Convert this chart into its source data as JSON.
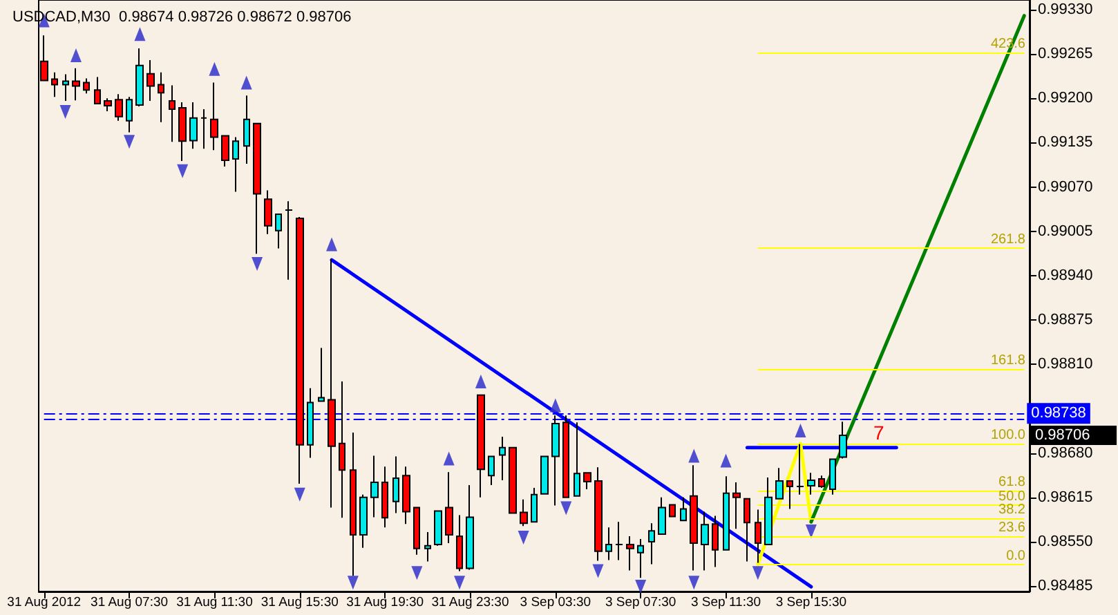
{
  "chart_data": {
    "type": "candlestick",
    "title": "USDCAD,M30  0.98674 0.98726 0.98672 0.98706",
    "categories": [
      "31 Aug 2012",
      null,
      null,
      null,
      null,
      null,
      null,
      null,
      "31 Aug 07:30",
      null,
      null,
      null,
      null,
      null,
      null,
      null,
      "31 Aug 11:30",
      null,
      null,
      null,
      null,
      null,
      null,
      null,
      "31 Aug 15:30",
      null,
      null,
      null,
      null,
      null,
      null,
      null,
      "31 Aug 19:30",
      null,
      null,
      null,
      null,
      null,
      null,
      null,
      "31 Aug 23:30",
      null,
      null,
      null,
      null,
      null,
      null,
      null,
      "3 Sep 03:30",
      null,
      null,
      null,
      null,
      null,
      null,
      null,
      "3 Sep 07:30",
      null,
      null,
      null,
      null,
      null,
      null,
      null,
      "3 Sep 11:30",
      null,
      null,
      null,
      null,
      null,
      null,
      null,
      "3 Sep 15:30",
      null,
      null,
      null,
      null,
      null,
      null,
      null,
      null,
      null,
      null,
      null,
      null,
      null,
      null,
      null,
      null,
      null,
      null,
      null,
      null
    ],
    "ohlc": [
      [
        0.99254,
        0.99292,
        0.99226,
        0.99226
      ],
      [
        0.99228,
        0.99238,
        0.99202,
        0.9922
      ],
      [
        0.9922,
        0.99235,
        0.99196,
        0.99225
      ],
      [
        0.99225,
        0.99244,
        0.99197,
        0.99218
      ],
      [
        0.99223,
        0.99229,
        0.99207,
        0.99212
      ],
      [
        0.99212,
        0.99231,
        0.99192,
        0.99192
      ],
      [
        0.99196,
        0.992,
        0.99181,
        0.99189
      ],
      [
        0.99198,
        0.99206,
        0.99167,
        0.99173
      ],
      [
        0.99167,
        0.99202,
        0.9915,
        0.99198
      ],
      [
        0.9919,
        0.99273,
        0.99188,
        0.99248
      ],
      [
        0.99236,
        0.99256,
        0.99196,
        0.99218
      ],
      [
        0.9922,
        0.99238,
        0.99165,
        0.99208
      ],
      [
        0.99196,
        0.99219,
        0.99136,
        0.99184
      ],
      [
        0.99186,
        0.99194,
        0.99108,
        0.99137
      ],
      [
        0.99138,
        0.99194,
        0.99126,
        0.99171
      ],
      [
        0.99171,
        0.99184,
        0.99126,
        0.99171
      ],
      [
        0.99169,
        0.99223,
        0.99124,
        0.99143
      ],
      [
        0.99145,
        0.99146,
        0.991,
        0.99109
      ],
      [
        0.99111,
        0.99143,
        0.99063,
        0.99137
      ],
      [
        0.9913,
        0.99204,
        0.99104,
        0.99169
      ],
      [
        0.99163,
        0.99163,
        0.98972,
        0.9906
      ],
      [
        0.99052,
        0.99065,
        0.99001,
        0.99013
      ],
      [
        0.99006,
        0.9903,
        0.9898,
        0.9903
      ],
      [
        0.99036,
        0.99049,
        0.98934,
        0.99036
      ],
      [
        0.99024,
        0.99026,
        0.98635,
        0.98692
      ],
      [
        0.98692,
        0.98775,
        0.98673,
        0.98754
      ],
      [
        0.98756,
        0.98834,
        0.98756,
        0.98761
      ],
      [
        0.98758,
        0.98964,
        0.986,
        0.9869
      ],
      [
        0.98694,
        0.98785,
        0.98585,
        0.98655
      ],
      [
        0.98655,
        0.9871,
        0.985,
        0.9856
      ],
      [
        0.9856,
        0.98619,
        0.98541,
        0.98615
      ],
      [
        0.98615,
        0.98676,
        0.98586,
        0.98637
      ],
      [
        0.98637,
        0.9866,
        0.98571,
        0.98585
      ],
      [
        0.98609,
        0.98675,
        0.98592,
        0.98643
      ],
      [
        0.98647,
        0.9866,
        0.98576,
        0.98594
      ],
      [
        0.986,
        0.986,
        0.98531,
        0.9854
      ],
      [
        0.9854,
        0.98564,
        0.98521,
        0.98544
      ],
      [
        0.98546,
        0.98596,
        0.98544,
        0.98595
      ],
      [
        0.986,
        0.98652,
        0.98548,
        0.9856
      ],
      [
        0.98558,
        0.98589,
        0.98507,
        0.98511
      ],
      [
        0.98511,
        0.98633,
        0.98509,
        0.98586
      ],
      [
        0.98765,
        0.98765,
        0.98615,
        0.98656
      ],
      [
        0.98647,
        0.98675,
        0.98633,
        0.98675
      ],
      [
        0.98677,
        0.98704,
        0.9864,
        0.98688
      ],
      [
        0.98688,
        0.98688,
        0.98592,
        0.98592
      ],
      [
        0.98593,
        0.98612,
        0.98573,
        0.98577
      ],
      [
        0.98579,
        0.98629,
        0.98579,
        0.98619
      ],
      [
        0.9862,
        0.98676,
        0.98619,
        0.98675
      ],
      [
        0.98675,
        0.98735,
        0.98603,
        0.98723
      ],
      [
        0.98725,
        0.98735,
        0.98615,
        0.98615
      ],
      [
        0.98617,
        0.98725,
        0.98617,
        0.9865
      ],
      [
        0.98651,
        0.98651,
        0.98627,
        0.98638
      ],
      [
        0.98639,
        0.98659,
        0.98522,
        0.98536
      ],
      [
        0.98536,
        0.98571,
        0.98523,
        0.98546
      ],
      [
        0.98546,
        0.98579,
        0.98523,
        0.98546
      ],
      [
        0.98546,
        0.98558,
        0.98508,
        0.9854
      ],
      [
        0.98534,
        0.98554,
        0.98497,
        0.98544
      ],
      [
        0.9855,
        0.98577,
        0.98517,
        0.98566
      ],
      [
        0.98561,
        0.98615,
        0.98561,
        0.986
      ],
      [
        0.98604,
        0.98604,
        0.98587,
        0.98587
      ],
      [
        0.98581,
        0.98615,
        0.98581,
        0.98598
      ],
      [
        0.98617,
        0.98662,
        0.98508,
        0.98548
      ],
      [
        0.98546,
        0.98594,
        0.98508,
        0.98575
      ],
      [
        0.98576,
        0.98588,
        0.98513,
        0.98538
      ],
      [
        0.98538,
        0.98646,
        0.98538,
        0.98621
      ],
      [
        0.98621,
        0.98637,
        0.98569,
        0.98615
      ],
      [
        0.98613,
        0.98613,
        0.98521,
        0.98578
      ],
      [
        0.98578,
        0.98597,
        0.98519,
        0.98548
      ],
      [
        0.98546,
        0.98644,
        0.98546,
        0.98615
      ],
      [
        0.98613,
        0.98658,
        0.98613,
        0.98639
      ],
      [
        0.98639,
        0.98639,
        0.98598,
        0.98631
      ],
      [
        0.98631,
        0.98693,
        0.98619,
        0.98631
      ],
      [
        0.98632,
        0.98651,
        0.98619,
        0.9864
      ],
      [
        0.98642,
        0.98647,
        0.98629,
        0.98631
      ],
      [
        0.98627,
        0.98671,
        0.98619,
        0.98671
      ],
      [
        0.98674,
        0.98726,
        0.98672,
        0.98706
      ],
      null,
      null,
      null,
      null,
      null,
      null,
      null,
      null,
      null,
      null,
      null,
      null,
      null,
      null,
      null,
      null,
      null
    ],
    "ylim": [
      0.98477,
      0.99344
    ],
    "yticks": [
      {
        "value": 0.9933,
        "label": "0.99330"
      },
      0.99265,
      {
        "value": 0.992,
        "label": "0.99200"
      },
      0.99135,
      {
        "value": 0.9907,
        "label": "0.99070"
      },
      0.99005,
      {
        "value": 0.9894,
        "label": "0.98940"
      },
      0.98875,
      {
        "value": 0.9881,
        "label": "0.98810"
      },
      {
        "value": 0.9868,
        "label": "0.98680"
      },
      0.98615,
      {
        "value": 0.9855,
        "label": "0.98550"
      },
      0.98485
    ],
    "series": [
      {
        "type": "line",
        "color": "#0000ff",
        "values": [
          null,
          null,
          null,
          null,
          null,
          null,
          null,
          null,
          null,
          null,
          null,
          null,
          null,
          null,
          null,
          null,
          null,
          null,
          null,
          null,
          null,
          null,
          null,
          null,
          null,
          null,
          null,
          0.98963,
          null,
          null,
          null,
          null,
          null,
          null,
          null,
          null,
          null,
          null,
          null,
          null,
          null,
          null,
          null,
          null,
          null,
          null,
          null,
          null,
          null,
          null,
          null,
          null,
          null,
          null,
          null,
          null,
          null,
          null,
          null,
          null,
          null,
          null,
          null,
          null,
          null,
          null,
          null,
          null,
          null,
          null,
          null,
          null,
          0.98484,
          null,
          null,
          null,
          null,
          null,
          null,
          null,
          null,
          null,
          null,
          null,
          null,
          null,
          null,
          null,
          null,
          null,
          null,
          null,
          null
        ]
      },
      {
        "type": "line",
        "color": "#0000ff",
        "values": [
          null,
          null,
          null,
          null,
          null,
          null,
          null,
          null,
          null,
          null,
          null,
          null,
          null,
          null,
          null,
          null,
          null,
          null,
          null,
          null,
          null,
          null,
          null,
          null,
          null,
          null,
          null,
          null,
          null,
          null,
          null,
          null,
          null,
          null,
          null,
          null,
          null,
          null,
          null,
          null,
          null,
          null,
          null,
          null,
          null,
          null,
          null,
          null,
          null,
          null,
          null,
          null,
          null,
          null,
          null,
          null,
          null,
          null,
          null,
          null,
          null,
          null,
          null,
          null,
          null,
          null,
          0.98688,
          null,
          null,
          null,
          null,
          null,
          null,
          null,
          null,
          null,
          null,
          null,
          null,
          null,
          0.98688,
          null,
          null,
          null,
          null,
          null,
          null,
          null,
          null,
          null,
          null,
          null,
          null
        ]
      },
      {
        "type": "line",
        "color": "#ffff00",
        "values": [
          null,
          null,
          null,
          null,
          null,
          null,
          null,
          null,
          null,
          null,
          null,
          null,
          null,
          null,
          null,
          null,
          null,
          null,
          null,
          null,
          null,
          null,
          null,
          null,
          null,
          null,
          null,
          null,
          null,
          null,
          null,
          null,
          null,
          null,
          null,
          null,
          null,
          null,
          null,
          null,
          null,
          null,
          null,
          null,
          null,
          null,
          null,
          null,
          null,
          null,
          null,
          null,
          null,
          null,
          null,
          null,
          null,
          null,
          null,
          null,
          null,
          null,
          null,
          null,
          null,
          null,
          null,
          0.98517,
          null,
          null,
          null,
          0.98694,
          0.98579,
          null,
          null,
          null,
          null,
          null,
          null,
          null,
          null,
          null,
          null,
          null,
          null,
          null,
          null,
          null,
          null,
          null,
          null,
          null,
          null
        ]
      },
      {
        "type": "line",
        "color": "#008000",
        "values": [
          null,
          null,
          null,
          null,
          null,
          null,
          null,
          null,
          null,
          null,
          null,
          null,
          null,
          null,
          null,
          null,
          null,
          null,
          null,
          null,
          null,
          null,
          null,
          null,
          null,
          null,
          null,
          null,
          null,
          null,
          null,
          null,
          null,
          null,
          null,
          null,
          null,
          null,
          null,
          null,
          null,
          null,
          null,
          null,
          null,
          null,
          null,
          null,
          null,
          null,
          null,
          null,
          null,
          null,
          null,
          null,
          null,
          null,
          null,
          null,
          null,
          null,
          null,
          null,
          null,
          null,
          null,
          null,
          null,
          null,
          null,
          null,
          0.98579,
          null,
          null,
          null,
          null,
          null,
          null,
          null,
          null,
          null,
          null,
          null,
          null,
          null,
          null,
          null,
          null,
          null,
          null,
          null,
          0.99321
        ]
      },
      {
        "type": "scatter",
        "color": "#3333cc",
        "marker": "triangle",
        "values": [
          0.99314,
          null,
          null,
          0.99263,
          null,
          null,
          null,
          null,
          null,
          0.99294,
          null,
          null,
          null,
          null,
          null,
          null,
          0.99243,
          null,
          null,
          0.99223,
          null,
          null,
          null,
          null,
          null,
          null,
          null,
          0.98986,
          null,
          null,
          null,
          null,
          null,
          null,
          null,
          null,
          null,
          null,
          0.98672,
          null,
          null,
          0.98785,
          null,
          null,
          null,
          null,
          null,
          null,
          0.9875,
          null,
          null,
          null,
          null,
          null,
          null,
          null,
          null,
          null,
          null,
          null,
          null,
          0.98676,
          null,
          null,
          0.98669,
          null,
          null,
          null,
          null,
          null,
          null,
          0.98713,
          null,
          null,
          null,
          null,
          null,
          null,
          null,
          null,
          null,
          null,
          null,
          null,
          null,
          null,
          null,
          null,
          null,
          null,
          null,
          null,
          null
        ]
      },
      {
        "type": "scatter",
        "color": "#3333cc",
        "marker": "triangle",
        "values": [
          null,
          null,
          0.9918,
          null,
          null,
          null,
          null,
          null,
          0.99136,
          null,
          null,
          null,
          null,
          0.99093,
          null,
          null,
          null,
          null,
          null,
          null,
          0.98957,
          null,
          null,
          null,
          0.98619,
          null,
          null,
          null,
          null,
          0.9849,
          null,
          null,
          null,
          null,
          null,
          0.98504,
          null,
          null,
          null,
          0.9849,
          null,
          null,
          null,
          null,
          null,
          0.98556,
          null,
          null,
          null,
          0.98599,
          null,
          null,
          0.98507,
          null,
          null,
          null,
          0.98484,
          null,
          null,
          null,
          null,
          0.9849,
          null,
          null,
          null,
          null,
          null,
          0.98504,
          null,
          null,
          null,
          null,
          0.98565,
          null,
          null,
          null,
          null,
          null,
          null,
          null,
          null,
          null,
          null,
          null,
          null,
          null,
          null,
          null,
          null,
          null,
          null,
          null,
          null
        ]
      }
    ],
    "ref_lines": [
      {
        "axis": "y",
        "value": 0.99267,
        "color": "#ffff00",
        "line_style": "solid"
      },
      {
        "axis": "y",
        "value": 0.9898,
        "color": "#ffff00",
        "line_style": "solid"
      },
      {
        "axis": "y",
        "value": 0.98803,
        "color": "#ffff00",
        "line_style": "solid"
      },
      {
        "axis": "y",
        "value": 0.98694,
        "color": "#ffff00",
        "line_style": "solid"
      },
      {
        "axis": "y",
        "value": 0.98625,
        "color": "#ffff00",
        "line_style": "solid"
      },
      {
        "axis": "y",
        "value": 0.98604,
        "color": "#ffff00",
        "line_style": "solid"
      },
      {
        "axis": "y",
        "value": 0.98584,
        "color": "#ffff00",
        "line_style": "solid"
      },
      {
        "axis": "y",
        "value": 0.98558,
        "color": "#ffff00",
        "line_style": "solid"
      },
      {
        "axis": "y",
        "value": 0.98517,
        "color": "#ffff00",
        "line_style": "solid"
      },
      {
        "axis": "y",
        "value": 0.98738,
        "label": "0.98738",
        "color": "#0000ff",
        "line_style": "dashed"
      },
      {
        "axis": "y",
        "value": 0.9873,
        "color": "#0000ff",
        "line_style": "dashed"
      }
    ],
    "annotations": [
      "7",
      "0.98706",
      {
        "text": "423.6",
        "y": 0.99267
      },
      {
        "text": "261.8",
        "y": 0.9898
      },
      {
        "text": "161.8",
        "y": 0.98803
      },
      {
        "text": "100.0",
        "y": 0.98694
      },
      {
        "text": "61.8",
        "y": 0.98625
      },
      {
        "text": "50.0",
        "y": 0.98604
      },
      {
        "text": "38.2",
        "y": 0.98584
      },
      {
        "text": "23.6",
        "y": 0.98558
      },
      {
        "text": "0.0",
        "y": 0.98517
      }
    ],
    "grid": false
  }
}
